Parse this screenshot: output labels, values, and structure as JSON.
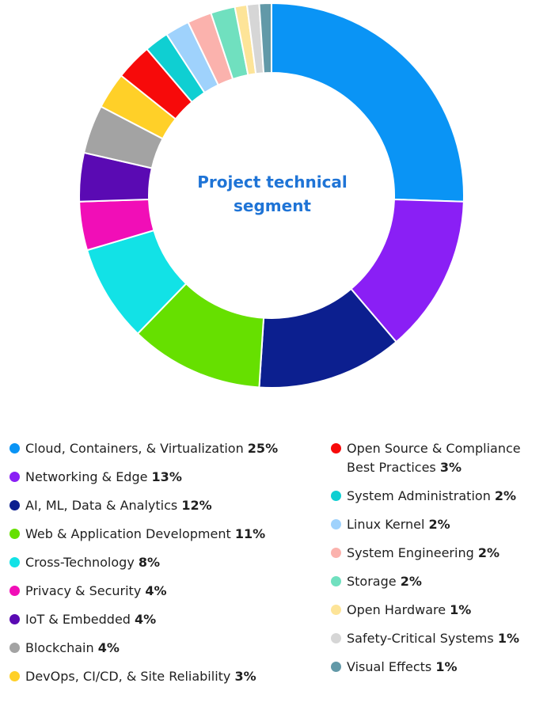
{
  "chart_data": {
    "type": "pie",
    "title": "Project technical segment",
    "categories": [
      "Cloud, Containers, & Virtualization",
      "Networking & Edge",
      "AI, ML, Data & Analytics",
      "Web & Application Development",
      "Cross-Technology",
      "Privacy & Security",
      "IoT & Embedded",
      "Blockchain",
      "DevOps, CI/CD, & Site Reliability",
      "Open Source & Compliance Best Practices",
      "System Administration",
      "Linux Kernel",
      "System Engineering",
      "Storage",
      "Open Hardware",
      "Safety-Critical Systems",
      "Visual Effects"
    ],
    "values": [
      25,
      13,
      12,
      11,
      8,
      4,
      4,
      4,
      3,
      3,
      2,
      2,
      2,
      2,
      1,
      1,
      1
    ],
    "labels": [
      "25%",
      "13%",
      "12%",
      "11%",
      "8%",
      "4%",
      "4%",
      "4%",
      "3%",
      "3%",
      "2%",
      "2%",
      "2%",
      "2%",
      "1%",
      "1%",
      "1%"
    ],
    "colors": [
      "#0a94f5",
      "#8a1ff5",
      "#0c1f8f",
      "#66e000",
      "#12e2e6",
      "#f10eb7",
      "#5a0ab3",
      "#a3a3a3",
      "#ffd028",
      "#f70a0a",
      "#0fcfd2",
      "#9fd2fc",
      "#fbb2ad",
      "#70e0bf",
      "#fde498",
      "#d6d6d6",
      "#6299a8"
    ],
    "legend_placement": "bottom"
  }
}
